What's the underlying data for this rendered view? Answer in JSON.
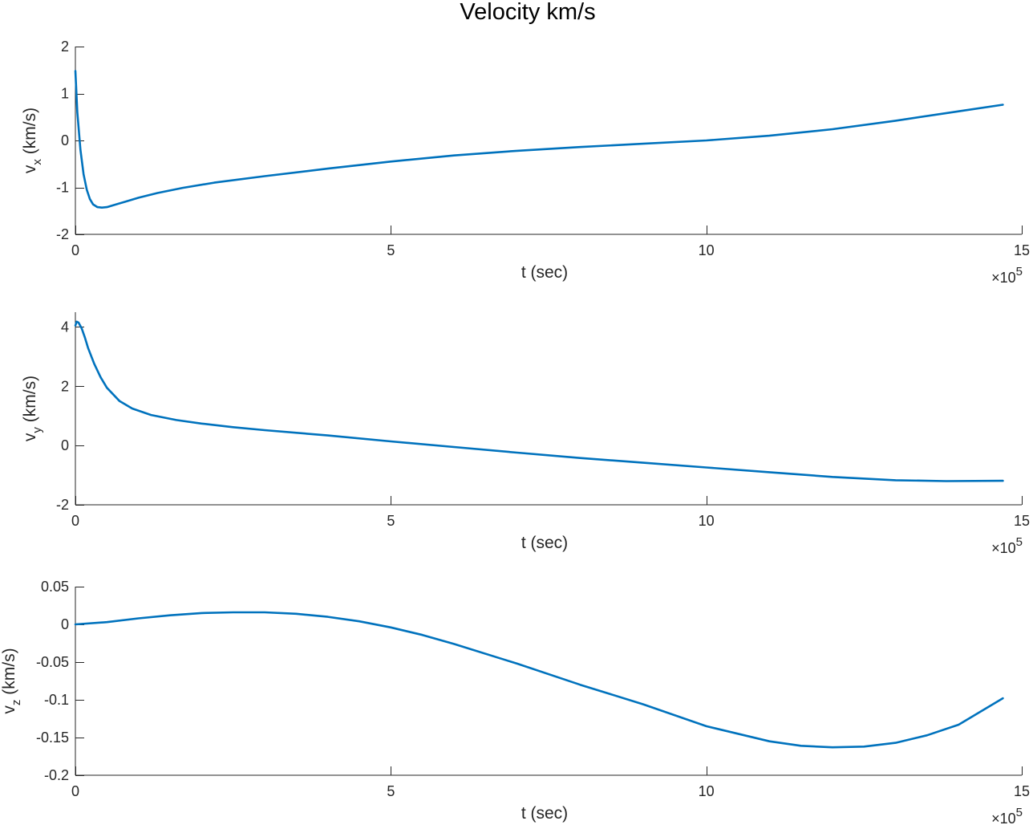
{
  "figure": {
    "title": "Velocity km/s",
    "colors": {
      "series": "#0072BD",
      "axis": "#262626"
    }
  },
  "chart_data": [
    {
      "type": "line",
      "xlabel": "t (sec)",
      "ylabel": {
        "main": "v",
        "sub": "x",
        "unit": " (km/s)"
      },
      "x_exponent": {
        "base": "×10",
        "power": "5"
      },
      "xlim": [
        0,
        15
      ],
      "ylim": [
        -2,
        2
      ],
      "x_ticks": [
        0,
        5,
        10,
        15
      ],
      "x_tick_labels": [
        "0",
        "5",
        "10",
        "15"
      ],
      "y_ticks": [
        -2,
        -1,
        0,
        1,
        2
      ],
      "y_tick_labels": [
        "-2",
        "-1",
        "0",
        "1",
        "2"
      ],
      "grid": false,
      "series": [
        {
          "x": [
            0,
            0.03,
            0.08,
            0.13,
            0.18,
            0.23,
            0.28,
            0.35,
            0.42,
            0.5,
            0.6,
            0.8,
            1.0,
            1.3,
            1.7,
            2.2,
            3.0,
            4.0,
            5.0,
            6.0,
            7.0,
            8.0,
            9.0,
            10.0,
            11.0,
            12.0,
            13.0,
            14.0,
            14.7
          ],
          "y": [
            1.48,
            0.6,
            -0.2,
            -0.72,
            -1.05,
            -1.25,
            -1.36,
            -1.42,
            -1.43,
            -1.42,
            -1.38,
            -1.3,
            -1.22,
            -1.12,
            -1.01,
            -0.9,
            -0.76,
            -0.6,
            -0.45,
            -0.32,
            -0.22,
            -0.14,
            -0.07,
            0.0,
            0.1,
            0.24,
            0.42,
            0.62,
            0.76
          ]
        }
      ]
    },
    {
      "type": "line",
      "xlabel": "t (sec)",
      "ylabel": {
        "main": "v",
        "sub": "y",
        "unit": " (km/s)"
      },
      "x_exponent": {
        "base": "×10",
        "power": "5"
      },
      "xlim": [
        0,
        15
      ],
      "ylim": [
        -2,
        4.5
      ],
      "x_ticks": [
        0,
        5,
        10,
        15
      ],
      "x_tick_labels": [
        "0",
        "5",
        "10",
        "15"
      ],
      "y_ticks": [
        -2,
        0,
        2,
        4
      ],
      "y_tick_labels": [
        "-2",
        "0",
        "2",
        "4"
      ],
      "grid": false,
      "series": [
        {
          "x": [
            0,
            0.02,
            0.05,
            0.1,
            0.15,
            0.2,
            0.3,
            0.4,
            0.5,
            0.7,
            0.9,
            1.2,
            1.6,
            2.0,
            2.5,
            3.0,
            4.0,
            5.0,
            6.0,
            7.0,
            8.0,
            9.0,
            10.0,
            11.0,
            12.0,
            13.0,
            13.8,
            14.7
          ],
          "y": [
            4.05,
            4.18,
            4.15,
            3.95,
            3.65,
            3.3,
            2.75,
            2.3,
            1.95,
            1.5,
            1.25,
            1.03,
            0.86,
            0.74,
            0.62,
            0.52,
            0.34,
            0.14,
            -0.05,
            -0.24,
            -0.42,
            -0.58,
            -0.74,
            -0.9,
            -1.06,
            -1.17,
            -1.2,
            -1.19
          ]
        }
      ]
    },
    {
      "type": "line",
      "xlabel": "t (sec)",
      "ylabel": {
        "main": "v",
        "sub": "z",
        "unit": " (km/s)"
      },
      "x_exponent": {
        "base": "×10",
        "power": "5"
      },
      "xlim": [
        0,
        15
      ],
      "ylim": [
        -0.2,
        0.05
      ],
      "x_ticks": [
        0,
        5,
        10,
        15
      ],
      "x_tick_labels": [
        "0",
        "5",
        "10",
        "15"
      ],
      "y_ticks": [
        -0.2,
        -0.15,
        -0.1,
        -0.05,
        0,
        0.05
      ],
      "y_tick_labels": [
        "-0.2",
        "-0.15",
        "-0.1",
        "-0.05",
        "0",
        "0.05"
      ],
      "grid": false,
      "series": [
        {
          "x": [
            0,
            0.5,
            1.0,
            1.5,
            2.0,
            2.5,
            3.0,
            3.5,
            4.0,
            4.5,
            5.0,
            5.5,
            6.0,
            7.0,
            8.0,
            9.0,
            10.0,
            11.0,
            11.5,
            12.0,
            12.5,
            13.0,
            13.5,
            14.0,
            14.7
          ],
          "y": [
            0.0,
            0.003,
            0.008,
            0.012,
            0.015,
            0.016,
            0.016,
            0.014,
            0.01,
            0.004,
            -0.004,
            -0.014,
            -0.026,
            -0.052,
            -0.08,
            -0.106,
            -0.135,
            -0.155,
            -0.161,
            -0.163,
            -0.162,
            -0.157,
            -0.147,
            -0.133,
            -0.098
          ]
        }
      ]
    }
  ]
}
